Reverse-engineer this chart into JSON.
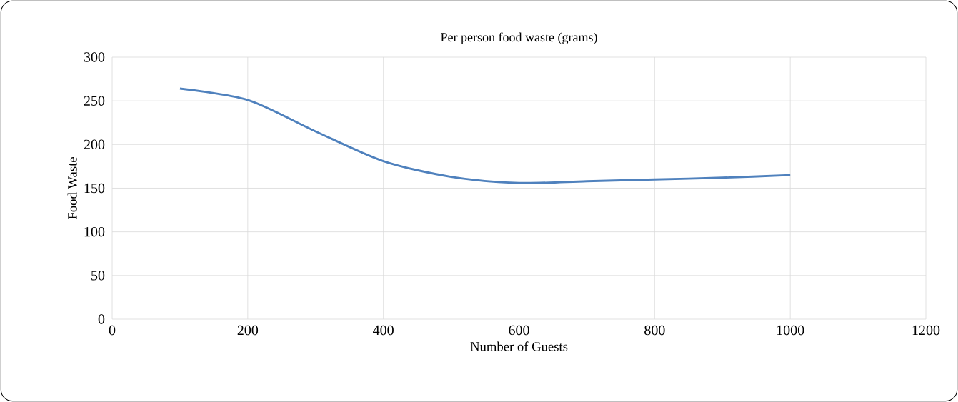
{
  "chart_data": {
    "type": "line",
    "title": "Per person food waste (grams)",
    "xlabel": "Number of Guests",
    "ylabel": "Food Waste",
    "series": [
      {
        "color": "#4f81bd",
        "x": [
          100,
          200,
          300,
          400,
          500,
          600,
          700,
          800,
          900,
          1000
        ],
        "values": [
          264,
          251,
          215,
          181,
          163,
          156,
          158,
          160,
          162,
          165
        ]
      }
    ],
    "xlim": [
      0,
      1200
    ],
    "ylim": [
      0,
      300
    ],
    "xticks": [
      0,
      200,
      400,
      600,
      800,
      1000,
      1200
    ],
    "yticks": [
      0,
      50,
      100,
      150,
      200,
      250,
      300
    ],
    "grid": true
  }
}
